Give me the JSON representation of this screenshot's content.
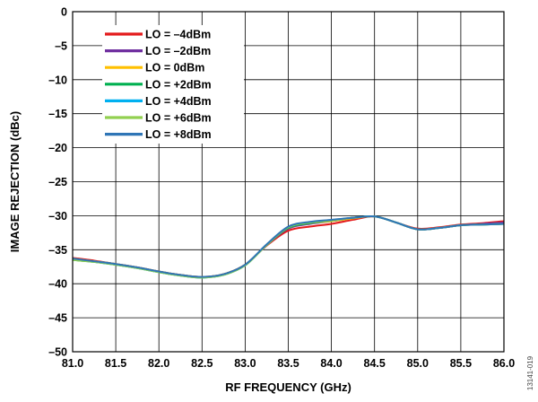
{
  "figure_id": "13141-019",
  "chart_data": {
    "type": "line",
    "title": "",
    "xlabel": "RF FREQUENCY (GHz)",
    "ylabel": "IMAGE REJECTION (dBc)",
    "xlim": [
      81.0,
      86.0
    ],
    "ylim": [
      -50,
      0
    ],
    "x_ticks": [
      "81.0",
      "81.5",
      "82.0",
      "82.5",
      "83.0",
      "83.5",
      "84.0",
      "84.5",
      "85.0",
      "85.5",
      "86.0"
    ],
    "y_ticks": [
      "0",
      "–5",
      "–10",
      "–15",
      "–20",
      "–25",
      "–30",
      "–35",
      "–40",
      "–45",
      "–50"
    ],
    "grid": true,
    "legend_position": "top-left",
    "x": [
      81.0,
      81.25,
      81.5,
      81.75,
      82.0,
      82.25,
      82.5,
      82.75,
      83.0,
      83.25,
      83.5,
      83.75,
      84.0,
      84.25,
      84.5,
      84.75,
      85.0,
      85.25,
      85.5,
      85.75,
      86.0
    ],
    "series": [
      {
        "name": "LO = –4dBm",
        "color": "#e41a1c",
        "values": [
          -36.2,
          -36.6,
          -37.1,
          -37.6,
          -38.2,
          -38.7,
          -39.0,
          -38.6,
          -37.2,
          -34.4,
          -32.2,
          -31.6,
          -31.2,
          -30.6,
          -30.1,
          -31.0,
          -31.9,
          -31.7,
          -31.3,
          -31.1,
          -30.8
        ]
      },
      {
        "name": "LO = –2dBm",
        "color": "#7030a0",
        "values": [
          -36.3,
          -36.7,
          -37.1,
          -37.6,
          -38.2,
          -38.7,
          -39.0,
          -38.6,
          -37.2,
          -34.3,
          -31.9,
          -31.2,
          -30.8,
          -30.4,
          -30.1,
          -31.0,
          -32.0,
          -31.8,
          -31.4,
          -31.2,
          -31.0
        ]
      },
      {
        "name": "LO = 0dBm",
        "color": "#ffc000",
        "values": [
          -36.3,
          -36.7,
          -37.1,
          -37.6,
          -38.2,
          -38.7,
          -39.0,
          -38.6,
          -37.2,
          -34.3,
          -31.8,
          -31.1,
          -30.8,
          -30.4,
          -30.1,
          -31.0,
          -32.0,
          -31.8,
          -31.4,
          -31.3,
          -31.2
        ]
      },
      {
        "name": "LO = +2dBm",
        "color": "#00b050",
        "values": [
          -36.5,
          -36.8,
          -37.2,
          -37.7,
          -38.3,
          -38.8,
          -39.1,
          -38.7,
          -37.3,
          -34.3,
          -31.8,
          -31.1,
          -30.7,
          -30.3,
          -30.1,
          -31.0,
          -32.0,
          -31.8,
          -31.4,
          -31.3,
          -31.2
        ]
      },
      {
        "name": "LO = +4dBm",
        "color": "#00b0f0",
        "values": [
          -36.4,
          -36.8,
          -37.2,
          -37.7,
          -38.3,
          -38.8,
          -39.1,
          -38.7,
          -37.3,
          -34.3,
          -31.7,
          -31.0,
          -30.7,
          -30.3,
          -30.1,
          -31.0,
          -32.0,
          -31.8,
          -31.4,
          -31.3,
          -31.2
        ]
      },
      {
        "name": "LO = +6dBm",
        "color": "#92d050",
        "values": [
          -36.5,
          -36.8,
          -37.2,
          -37.7,
          -38.3,
          -38.8,
          -39.1,
          -38.7,
          -37.3,
          -34.3,
          -31.7,
          -31.0,
          -30.7,
          -30.3,
          -30.1,
          -31.0,
          -32.0,
          -31.8,
          -31.4,
          -31.3,
          -31.2
        ]
      },
      {
        "name": "LO = +8dBm",
        "color": "#2e75b6",
        "values": [
          -36.3,
          -36.7,
          -37.1,
          -37.6,
          -38.2,
          -38.7,
          -39.0,
          -38.6,
          -37.2,
          -34.2,
          -31.6,
          -30.9,
          -30.6,
          -30.3,
          -30.1,
          -31.0,
          -32.0,
          -31.8,
          -31.4,
          -31.3,
          -31.2
        ]
      }
    ]
  }
}
